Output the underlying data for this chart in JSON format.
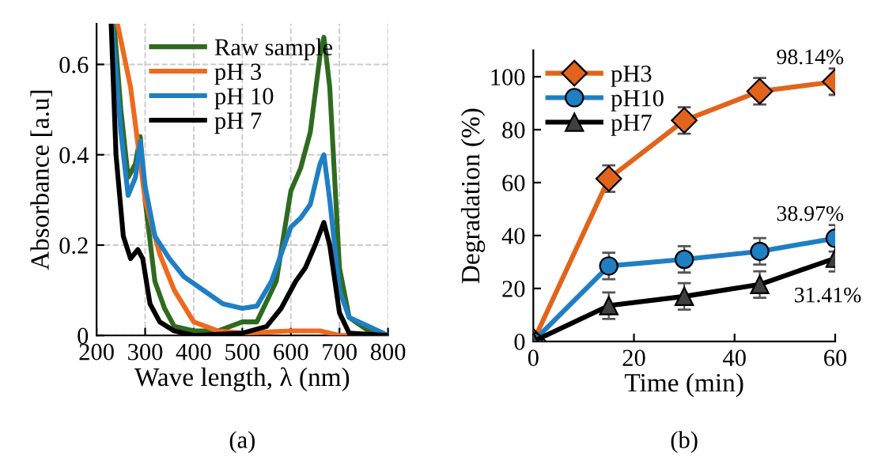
{
  "chart_data": [
    {
      "type": "line",
      "xlabel": "Wave length, λ (nm)",
      "ylabel": "Absorbance [a.u]",
      "annotations": [
        "(a)"
      ],
      "xlim": [
        200,
        800
      ],
      "ylim": [
        0,
        0.69
      ],
      "xticks": [
        200,
        300,
        400,
        500,
        600,
        700,
        800
      ],
      "yticks": [
        0,
        0.2,
        0.4,
        0.6
      ],
      "grid": true,
      "legend": "top",
      "marker": "none",
      "line_style": "solid",
      "series": [
        {
          "name": "Raw sample",
          "color": "#2e6b1f",
          "x": [
            236,
            250,
            265,
            280,
            290,
            300,
            320,
            340,
            360,
            400,
            450,
            500,
            530,
            570,
            600,
            620,
            640,
            660,
            668,
            680,
            700,
            720,
            760,
            800
          ],
          "values": [
            0.69,
            0.5,
            0.35,
            0.38,
            0.44,
            0.3,
            0.12,
            0.06,
            0.02,
            0.01,
            0.01,
            0.03,
            0.03,
            0.12,
            0.32,
            0.37,
            0.45,
            0.62,
            0.66,
            0.55,
            0.15,
            0.04,
            0.01,
            0.0
          ]
        },
        {
          "name": "pH 3",
          "color": "#ee6a1c",
          "x": [
            243,
            270,
            300,
            330,
            360,
            400,
            450,
            500,
            600,
            660,
            700,
            800
          ],
          "values": [
            0.69,
            0.55,
            0.3,
            0.18,
            0.1,
            0.03,
            0.01,
            0.005,
            0.01,
            0.01,
            0.0,
            0.0
          ]
        },
        {
          "name": "pH 10",
          "color": "#1f7fc4",
          "x": [
            232,
            250,
            265,
            280,
            290,
            300,
            320,
            350,
            380,
            420,
            460,
            500,
            530,
            560,
            600,
            620,
            640,
            660,
            668,
            680,
            700,
            720,
            760,
            800
          ],
          "values": [
            0.69,
            0.45,
            0.31,
            0.35,
            0.43,
            0.33,
            0.22,
            0.17,
            0.13,
            0.1,
            0.07,
            0.06,
            0.065,
            0.12,
            0.24,
            0.26,
            0.29,
            0.38,
            0.4,
            0.3,
            0.1,
            0.04,
            0.02,
            0.0
          ]
        },
        {
          "name": "pH 7",
          "color": "#000000",
          "x": [
            230,
            240,
            255,
            270,
            285,
            295,
            310,
            330,
            360,
            400,
            500,
            550,
            580,
            610,
            630,
            650,
            668,
            680,
            700,
            720,
            800
          ],
          "values": [
            0.69,
            0.4,
            0.22,
            0.17,
            0.19,
            0.17,
            0.07,
            0.03,
            0.01,
            0.0,
            0.005,
            0.02,
            0.06,
            0.12,
            0.15,
            0.2,
            0.25,
            0.2,
            0.05,
            0.005,
            0.0
          ]
        }
      ]
    },
    {
      "type": "line",
      "xlabel": "Time (min)",
      "ylabel": "Degradation (%)",
      "xlim": [
        0,
        60
      ],
      "ylim": [
        0,
        110
      ],
      "xticks": [
        0,
        20,
        40,
        60
      ],
      "yticks": [
        0,
        20,
        40,
        60,
        80,
        100
      ],
      "grid": false,
      "legend": "top left",
      "line_style": "solid",
      "x": [
        0,
        15,
        30,
        45,
        60
      ],
      "annotations": [
        "(b)"
      ],
      "series": [
        {
          "name": "pH3",
          "color": "#e2641c",
          "marker": "diamond",
          "values": [
            0,
            61.5,
            83.5,
            94.5,
            98.14
          ],
          "value_labels": [
            null,
            null,
            null,
            null,
            "98.14%"
          ],
          "errors": [
            null,
            5,
            5,
            5,
            5
          ]
        },
        {
          "name": "pH10",
          "color": "#1f7fc4",
          "marker": "circle",
          "values": [
            0,
            28.5,
            31,
            34,
            38.97
          ],
          "value_labels": [
            null,
            null,
            null,
            null,
            "38.97%"
          ],
          "errors": [
            null,
            5,
            5,
            5,
            5
          ]
        },
        {
          "name": "pH7",
          "color": "#000000",
          "marker": "triangle",
          "values": [
            0,
            13.5,
            17,
            21.5,
            31.41
          ],
          "value_labels": [
            null,
            null,
            null,
            null,
            "31.41%"
          ],
          "errors": [
            null,
            5,
            5,
            5,
            5
          ]
        }
      ]
    }
  ]
}
